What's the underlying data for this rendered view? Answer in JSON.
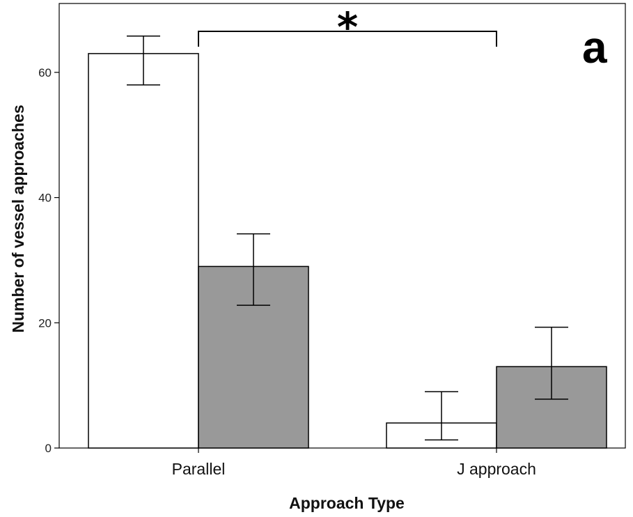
{
  "chart_data": {
    "type": "bar",
    "title": "",
    "panel_label": "a",
    "xlabel": "Approach Type",
    "ylabel": "Number of vessel approaches",
    "categories": [
      "Parallel",
      "J approach"
    ],
    "ylim": [
      0,
      71
    ],
    "yticks": [
      0,
      20,
      40,
      60
    ],
    "grid": false,
    "legend": "none",
    "series": [
      {
        "color": "#ffffff",
        "values": [
          63,
          4
        ],
        "error_low": [
          58,
          1.3
        ],
        "error_high": [
          65.8,
          9
        ]
      },
      {
        "color": "#999999",
        "values": [
          29,
          13
        ],
        "error_low": [
          22.8,
          7.8
        ],
        "error_high": [
          34.2,
          19.3
        ]
      }
    ],
    "annotations": [
      {
        "text": "*",
        "type": "significance-bracket",
        "between": [
          "Parallel",
          "J approach"
        ],
        "series_index": 0
      }
    ]
  }
}
